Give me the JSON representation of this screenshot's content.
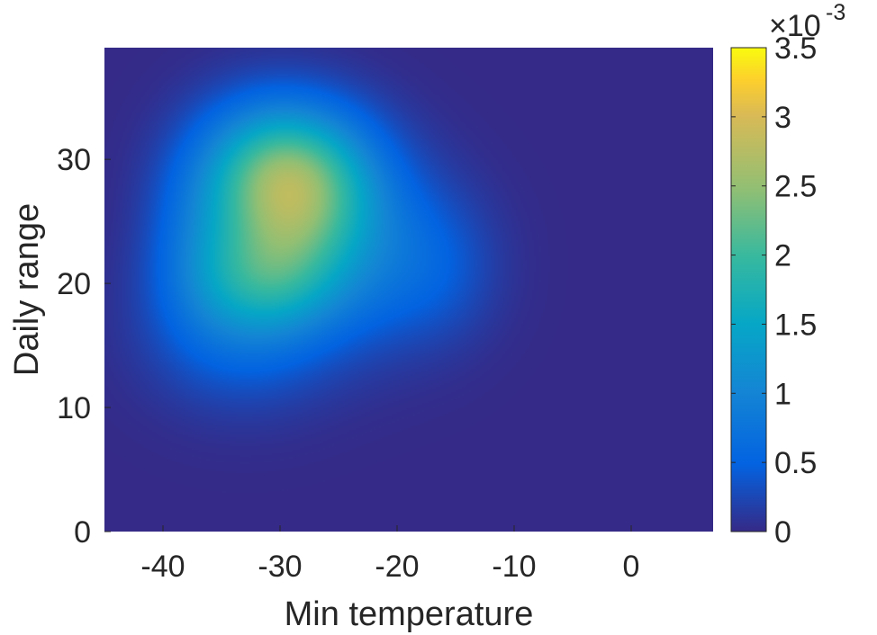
{
  "chart_data": {
    "type": "heatmap",
    "title": "",
    "xlabel": "Min temperature",
    "ylabel": "Daily range",
    "xlim": [
      -45,
      7
    ],
    "ylim": [
      0,
      39
    ],
    "x_ticks": [
      -40,
      -30,
      -20,
      -10,
      0
    ],
    "x_tick_labels": [
      "-40",
      "-30",
      "-20",
      "-10",
      "0"
    ],
    "y_ticks": [
      0,
      10,
      20,
      30
    ],
    "y_tick_labels": [
      "0",
      "10",
      "20",
      "30"
    ],
    "grid": false,
    "colormap": "parula",
    "colorbar": {
      "range": [
        0,
        0.0035
      ],
      "ticks": [
        0,
        0.0005,
        0.001,
        0.0015,
        0.002,
        0.0025,
        0.003,
        0.0035
      ],
      "tick_labels": [
        "0",
        "0.5",
        "1",
        "1.5",
        "2",
        "2.5",
        "3",
        "3.5"
      ],
      "multiplier": "×10",
      "exponent": "-3"
    },
    "density_peaks": [
      {
        "x": -28,
        "y": 28.5,
        "value": 0.0035
      },
      {
        "x": -31,
        "y": 20.5,
        "value": 0.0021
      }
    ]
  }
}
